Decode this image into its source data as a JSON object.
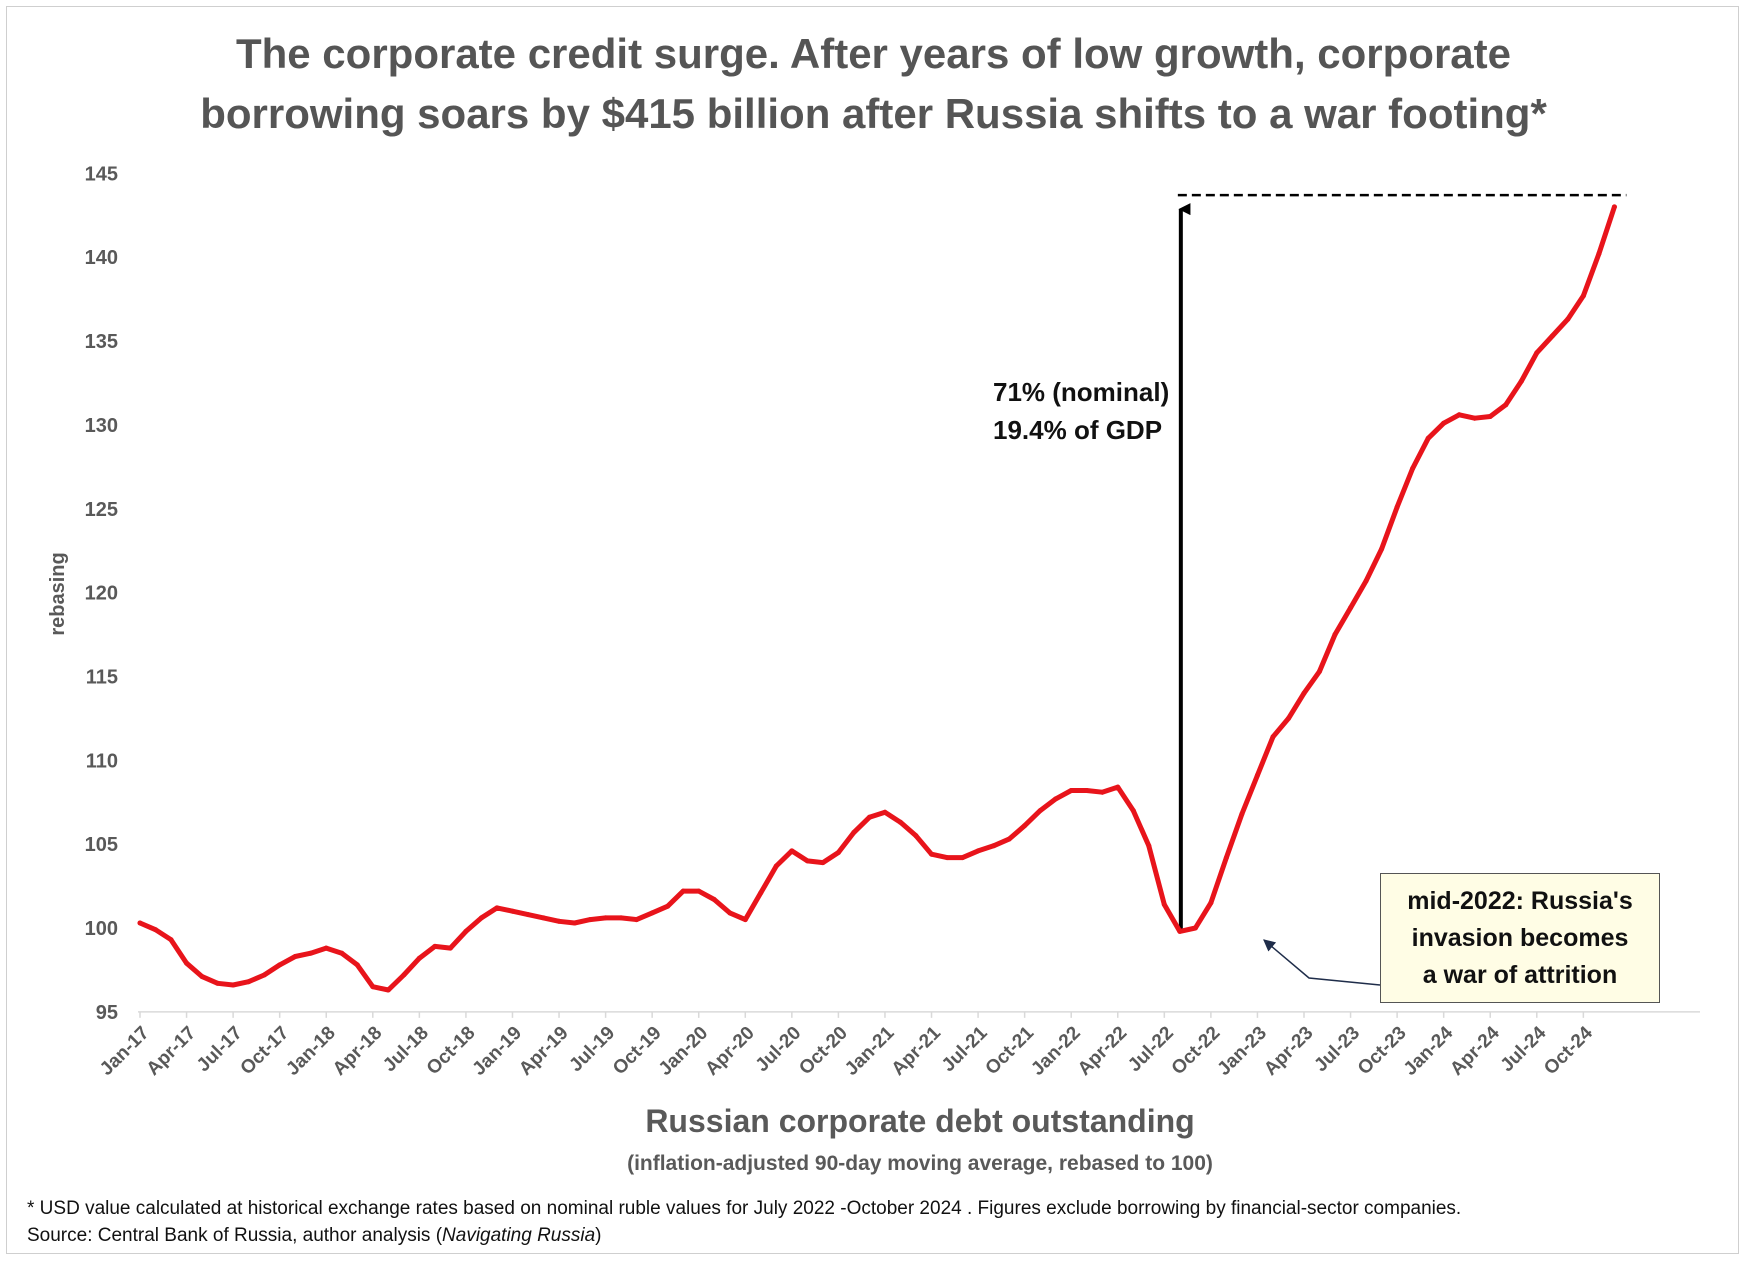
{
  "title_line1": "The corporate credit surge.  After years of low growth, corporate",
  "title_line2": "borrowing soars by $415 billion after Russia shifts to a war footing*",
  "xlabel": "Russian corporate debt outstanding",
  "xlabel_sub": "(inflation-adjusted 90-day moving average, rebased to 100)",
  "annotation_line1": "71% (nominal)",
  "annotation_line2": "19.4% of GDP",
  "callout": [
    "mid-2022: Russia's",
    "invasion becomes",
    "a war of attrition"
  ],
  "footnote": "* USD value calculated at historical exchange rates based on nominal ruble values for July 2022 -October 2024 .  Figures exclude  borrowing by financial-sector companies.",
  "source_prefix": "Source: Central Bank of Russia, author analysis (",
  "source_italic": "Navigating Russia",
  "source_suffix": ")",
  "colors": {
    "series": "#e8141b",
    "text": "#595959",
    "callout_bg": "#fffde5",
    "arrow": "#000000"
  },
  "chart_data": {
    "type": "line",
    "ylabel": "rebasing",
    "ylim": [
      95,
      145
    ],
    "yticks": [
      95,
      100,
      105,
      110,
      115,
      120,
      125,
      130,
      135,
      140,
      145
    ],
    "xtick_labels": [
      "Jan-17",
      "Apr-17",
      "Jul-17",
      "Oct-17",
      "Jan-18",
      "Apr-18",
      "Jul-18",
      "Oct-18",
      "Jan-19",
      "Apr-19",
      "Jul-19",
      "Oct-19",
      "Jan-20",
      "Apr-20",
      "Jul-20",
      "Oct-20",
      "Jan-21",
      "Apr-21",
      "Jul-21",
      "Oct-21",
      "Jan-22",
      "Apr-22",
      "Jul-22",
      "Oct-22",
      "Jan-23",
      "Apr-23",
      "Jul-23",
      "Oct-23",
      "Jan-24",
      "Apr-24",
      "Jul-24",
      "Oct-24"
    ],
    "start_month": "2017-01",
    "values": [
      100.3,
      99.9,
      99.3,
      97.9,
      97.1,
      96.7,
      96.6,
      96.8,
      97.2,
      97.8,
      98.3,
      98.5,
      98.8,
      98.5,
      97.8,
      96.5,
      96.3,
      97.2,
      98.2,
      98.9,
      98.8,
      99.8,
      100.6,
      101.2,
      101.0,
      100.8,
      100.6,
      100.4,
      100.3,
      100.5,
      100.6,
      100.6,
      100.5,
      100.9,
      101.3,
      102.2,
      102.2,
      101.7,
      100.9,
      100.5,
      102.1,
      103.7,
      104.6,
      104.0,
      103.9,
      104.5,
      105.7,
      106.6,
      106.9,
      106.3,
      105.5,
      104.4,
      104.2,
      104.2,
      104.6,
      104.9,
      105.3,
      106.1,
      107.0,
      107.7,
      108.2,
      108.2,
      108.1,
      108.4,
      107.0,
      104.9,
      101.4,
      99.8,
      100.0,
      101.5,
      104.2,
      106.8,
      109.1,
      111.4,
      112.5,
      114.0,
      115.3,
      117.5,
      119.1,
      120.7,
      122.6,
      125.1,
      127.4,
      129.2,
      130.1,
      130.6,
      130.4,
      130.5,
      131.2,
      132.6,
      134.3,
      135.3,
      136.3,
      137.7,
      140.2,
      143.0
    ],
    "reference_level": 143.7,
    "grid": false,
    "legend": "none"
  }
}
